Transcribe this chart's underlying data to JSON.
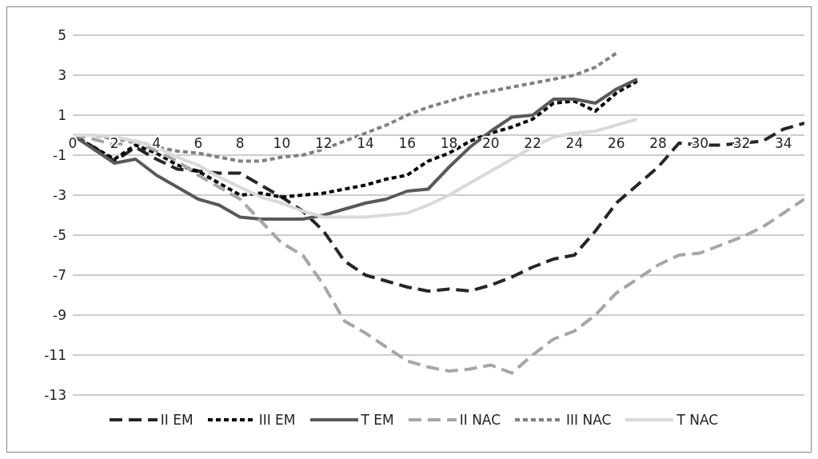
{
  "chart_data": {
    "type": "line",
    "x": [
      0,
      1,
      2,
      3,
      4,
      5,
      6,
      7,
      8,
      9,
      10,
      11,
      12,
      13,
      14,
      15,
      16,
      17,
      18,
      19,
      20,
      21,
      22,
      23,
      24,
      25,
      26,
      27,
      28,
      29,
      30,
      31,
      32,
      33,
      34,
      35
    ],
    "xlim": [
      0,
      35
    ],
    "xticks": [
      0,
      2,
      4,
      6,
      8,
      10,
      12,
      14,
      16,
      18,
      20,
      22,
      24,
      26,
      28,
      30,
      32,
      34
    ],
    "ylim": [
      -13,
      5
    ],
    "yticks": [
      -13,
      -11,
      -9,
      -7,
      -5,
      -3,
      -1,
      1,
      3,
      5
    ],
    "grid": "y",
    "legend": "bottom",
    "marker": "none",
    "series": [
      {
        "name": "II EM",
        "color": "#262626",
        "line_style": "dashed",
        "values": [
          0,
          -0.6,
          -1.3,
          -0.6,
          -1.2,
          -1.7,
          -1.8,
          -1.9,
          -1.9,
          -2.5,
          -3.1,
          -3.8,
          -4.8,
          -6.3,
          -7,
          -7.3,
          -7.6,
          -7.8,
          -7.7,
          -7.8,
          -7.5,
          -7.1,
          -6.6,
          -6.2,
          -6,
          -4.8,
          -3.4,
          -2.5,
          -1.6,
          -0.4,
          -0.5,
          -0.5,
          -0.4,
          -0.3,
          0.3,
          0.6
        ]
      },
      {
        "name": "III EM",
        "color": "#000000",
        "line_style": "dotted",
        "values": [
          0,
          -0.6,
          -1.2,
          -0.5,
          -0.9,
          -1.5,
          -1.8,
          -2.4,
          -3,
          -2.9,
          -3.1,
          -3,
          -2.9,
          -2.7,
          -2.5,
          -2.2,
          -2,
          -1.3,
          -0.9,
          -0.3,
          0.1,
          0.4,
          0.8,
          1.6,
          1.7,
          1.2,
          2.1,
          2.7,
          null,
          null,
          null,
          null,
          null,
          null,
          null,
          null
        ]
      },
      {
        "name": "T EM",
        "color": "#595959",
        "line_style": "solid",
        "values": [
          0,
          -0.7,
          -1.4,
          -1.2,
          -2,
          -2.6,
          -3.2,
          -3.5,
          -4.1,
          -4.2,
          -4.2,
          -4.2,
          -4,
          -3.7,
          -3.4,
          -3.2,
          -2.8,
          -2.7,
          -1.6,
          -0.6,
          0.2,
          0.9,
          1,
          1.8,
          1.8,
          1.6,
          2.3,
          2.8,
          null,
          null,
          null,
          null,
          null,
          null,
          null,
          null
        ]
      },
      {
        "name": "II NAC",
        "color": "#a6a6a6",
        "line_style": "dashed",
        "values": [
          0,
          -0.2,
          -0.5,
          -0.3,
          -0.8,
          -1.3,
          -2,
          -2.6,
          -3.2,
          -4.3,
          -5.4,
          -6,
          -7.5,
          -9.3,
          -9.9,
          -10.6,
          -11.3,
          -11.6,
          -11.8,
          -11.7,
          -11.5,
          -11.9,
          -11,
          -10.2,
          -9.8,
          -9,
          -7.9,
          -7.2,
          -6.5,
          -6,
          -5.9,
          -5.5,
          -5.1,
          -4.6,
          -3.9,
          -3.2
        ]
      },
      {
        "name": "III NAC",
        "color": "#808080",
        "line_style": "dotted",
        "values": [
          0,
          0,
          -0.2,
          -0.3,
          -0.6,
          -0.8,
          -0.9,
          -1.1,
          -1.3,
          -1.3,
          -1.1,
          -1,
          -0.7,
          -0.3,
          0.1,
          0.5,
          1,
          1.4,
          1.7,
          2,
          2.2,
          2.4,
          2.6,
          2.8,
          3,
          3.4,
          4.1,
          null,
          null,
          null,
          null,
          null,
          null,
          null,
          null,
          null
        ]
      },
      {
        "name": "T NAC",
        "color": "#d9d9d9",
        "line_style": "solid",
        "values": [
          0,
          0,
          -0.1,
          -0.3,
          -0.6,
          -1.1,
          -1.5,
          -2.1,
          -2.6,
          -3.1,
          -3.4,
          -3.8,
          -4.1,
          -4.1,
          -4.1,
          -4,
          -3.9,
          -3.5,
          -3,
          -2.4,
          -1.8,
          -1.2,
          -0.6,
          -0.1,
          0.1,
          0.2,
          0.5,
          0.8,
          null,
          null,
          null,
          null,
          null,
          null,
          null,
          null
        ]
      }
    ]
  }
}
